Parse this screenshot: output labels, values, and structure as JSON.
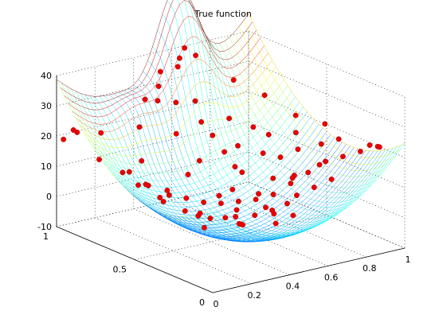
{
  "chart_data": {
    "type": "surface",
    "title": "True function",
    "xlabel": "",
    "ylabel": "",
    "zlabel": "",
    "xlim": [
      0,
      1
    ],
    "ylim": [
      0,
      1
    ],
    "zlim": [
      -10,
      40
    ],
    "x_ticks": [
      0,
      0.2,
      0.4,
      0.6,
      0.8,
      1
    ],
    "x_tick_labels": [
      "0",
      "0.2",
      "0.4",
      "0.6",
      "0.8",
      "1"
    ],
    "y_ticks": [
      0,
      0.5,
      1
    ],
    "y_tick_labels": [
      "0",
      "0.5",
      "1"
    ],
    "z_ticks": [
      -10,
      0,
      10,
      20,
      30,
      40
    ],
    "z_tick_labels": [
      "-10",
      "0",
      "10",
      "20",
      "30",
      "40"
    ],
    "grid": true,
    "colormap": "jet",
    "surface_style": "mesh",
    "marker_color": "#e80000",
    "sample_points": [
      [
        0.02,
        0.98,
        19
      ],
      [
        0.05,
        0.93,
        22
      ],
      [
        0.08,
        0.99,
        21
      ],
      [
        0.1,
        0.85,
        14
      ],
      [
        0.15,
        0.9,
        21
      ],
      [
        0.2,
        0.78,
        10
      ],
      [
        0.25,
        0.72,
        6
      ],
      [
        0.3,
        0.66,
        5
      ],
      [
        0.35,
        0.6,
        3
      ],
      [
        0.4,
        0.55,
        2
      ],
      [
        0.45,
        0.5,
        2
      ],
      [
        0.5,
        0.45,
        3
      ],
      [
        0.55,
        0.4,
        4
      ],
      [
        0.6,
        0.35,
        6
      ],
      [
        0.65,
        0.3,
        10
      ],
      [
        0.7,
        0.25,
        14
      ],
      [
        0.75,
        0.2,
        18
      ],
      [
        0.8,
        0.15,
        20
      ],
      [
        0.85,
        0.1,
        22
      ],
      [
        0.9,
        0.05,
        24
      ],
      [
        0.95,
        0.1,
        22
      ],
      [
        0.98,
        0.2,
        20
      ],
      [
        0.3,
        0.2,
        4
      ],
      [
        0.35,
        0.25,
        2
      ],
      [
        0.4,
        0.3,
        0
      ],
      [
        0.45,
        0.15,
        3
      ],
      [
        0.5,
        0.1,
        6
      ],
      [
        0.55,
        0.2,
        7
      ],
      [
        0.25,
        0.4,
        3
      ],
      [
        0.2,
        0.3,
        2
      ],
      [
        0.15,
        0.5,
        7
      ],
      [
        0.1,
        0.6,
        11
      ],
      [
        0.22,
        0.55,
        7
      ],
      [
        0.3,
        0.45,
        2
      ],
      [
        0.5,
        0.7,
        11
      ],
      [
        0.55,
        0.75,
        22
      ],
      [
        0.5,
        0.85,
        27
      ],
      [
        0.45,
        0.9,
        32
      ],
      [
        0.5,
        0.95,
        35
      ],
      [
        0.55,
        0.9,
        37
      ],
      [
        0.6,
        0.85,
        26
      ],
      [
        0.65,
        0.8,
        15
      ],
      [
        0.7,
        0.7,
        13
      ],
      [
        0.75,
        0.6,
        12
      ],
      [
        0.8,
        0.55,
        11
      ],
      [
        0.85,
        0.5,
        14
      ],
      [
        0.75,
        0.4,
        9
      ],
      [
        0.68,
        0.45,
        8
      ],
      [
        0.6,
        0.55,
        9
      ],
      [
        0.42,
        0.75,
        20
      ],
      [
        0.38,
        0.82,
        30
      ],
      [
        0.4,
        0.65,
        9
      ],
      [
        0.6,
        0.95,
        38
      ],
      [
        0.65,
        0.98,
        40
      ],
      [
        0.7,
        0.97,
        37
      ],
      [
        0.35,
        0.35,
        2
      ],
      [
        0.45,
        0.4,
        2
      ],
      [
        0.55,
        0.55,
        4
      ],
      [
        0.62,
        0.62,
        9
      ],
      [
        0.7,
        0.35,
        10
      ],
      [
        0.8,
        0.3,
        14
      ],
      [
        0.85,
        0.35,
        19
      ],
      [
        0.9,
        0.3,
        21
      ],
      [
        0.92,
        0.6,
        22
      ],
      [
        0.88,
        0.75,
        26
      ],
      [
        0.8,
        0.85,
        30
      ],
      [
        0.6,
        0.2,
        9
      ],
      [
        0.65,
        0.15,
        12
      ],
      [
        0.7,
        0.1,
        15
      ],
      [
        0.4,
        0.1,
        8
      ],
      [
        0.35,
        0.05,
        11
      ],
      [
        0.3,
        0.1,
        9
      ],
      [
        0.2,
        0.1,
        10
      ],
      [
        0.15,
        0.2,
        8
      ],
      [
        0.1,
        0.3,
        9
      ],
      [
        0.05,
        0.4,
        12
      ],
      [
        0.1,
        0.7,
        13
      ],
      [
        0.18,
        0.65,
        9
      ],
      [
        0.28,
        0.8,
        12
      ],
      [
        0.35,
        0.9,
        20
      ],
      [
        0.42,
        0.95,
        27
      ],
      [
        0.48,
        0.55,
        3
      ],
      [
        0.52,
        0.3,
        4
      ],
      [
        0.58,
        0.42,
        5
      ],
      [
        0.63,
        0.7,
        12
      ],
      [
        0.72,
        0.78,
        20
      ],
      [
        0.78,
        0.7,
        18
      ],
      [
        0.82,
        0.65,
        16
      ],
      [
        0.88,
        0.55,
        18
      ],
      [
        0.95,
        0.45,
        22
      ]
    ]
  }
}
